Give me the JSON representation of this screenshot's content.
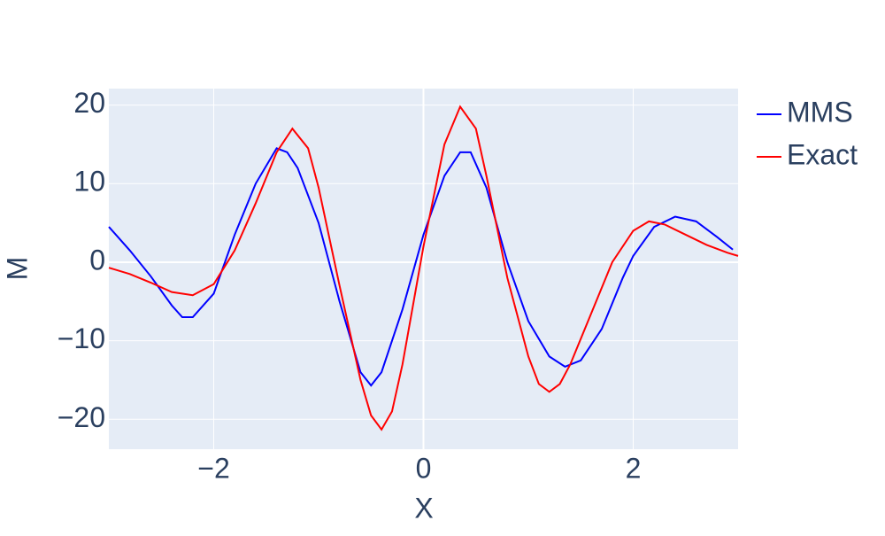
{
  "chart_data": {
    "type": "line",
    "xlabel": "X",
    "ylabel": "M",
    "xlim": [
      -3,
      3
    ],
    "ylim": [
      -23.8,
      22.1
    ],
    "xticks": [
      {
        "value": -2,
        "label": "−2"
      },
      0,
      2
    ],
    "yticks": [
      {
        "value": -20,
        "label": "−20"
      },
      {
        "value": -10,
        "label": "−10"
      },
      0,
      10,
      20
    ],
    "grid": true,
    "legend": "right",
    "series": [
      {
        "name": "MMS",
        "color": "#0000ff",
        "x": [
          -3,
          -2.8,
          -2.6,
          -2.4,
          -2.3,
          -2.2,
          -2.0,
          -1.8,
          -1.6,
          -1.4,
          -1.3,
          -1.2,
          -1.0,
          -0.8,
          -0.6,
          -0.5,
          -0.4,
          -0.2,
          0,
          0.2,
          0.35,
          0.45,
          0.6,
          0.8,
          1.0,
          1.2,
          1.35,
          1.5,
          1.7,
          1.9,
          2.0,
          2.2,
          2.4,
          2.6,
          2.8,
          2.95
        ],
        "values": [
          4.5,
          1.5,
          -1.8,
          -5.5,
          -7,
          -7,
          -4,
          3.5,
          10,
          14.5,
          14,
          12,
          5,
          -5,
          -14,
          -15.7,
          -14,
          -6,
          3.5,
          11,
          14,
          14,
          9.5,
          0,
          -7.5,
          -12,
          -13.3,
          -12.5,
          -8.5,
          -2,
          0.8,
          4.5,
          5.8,
          5.2,
          3.2,
          1.6
        ]
      },
      {
        "name": "Exact",
        "color": "#ff0000",
        "x": [
          -3,
          -2.8,
          -2.6,
          -2.4,
          -2.2,
          -2.0,
          -1.8,
          -1.6,
          -1.4,
          -1.25,
          -1.1,
          -1.0,
          -0.8,
          -0.6,
          -0.5,
          -0.4,
          -0.3,
          -0.2,
          0,
          0.2,
          0.35,
          0.5,
          0.6,
          0.8,
          1.0,
          1.1,
          1.2,
          1.3,
          1.4,
          1.6,
          1.8,
          2.0,
          2.15,
          2.3,
          2.5,
          2.7,
          2.9,
          3.0
        ],
        "values": [
          -0.7,
          -1.5,
          -2.6,
          -3.8,
          -4.2,
          -2.8,
          1.5,
          7.5,
          14,
          17,
          14.5,
          9.5,
          -3,
          -15,
          -19.5,
          -21.3,
          -19,
          -13,
          2,
          15,
          19.8,
          17,
          11,
          -2,
          -12,
          -15.5,
          -16.5,
          -15.5,
          -13,
          -6.5,
          0,
          4,
          5.2,
          4.8,
          3.5,
          2.2,
          1.2,
          0.8
        ]
      }
    ]
  }
}
